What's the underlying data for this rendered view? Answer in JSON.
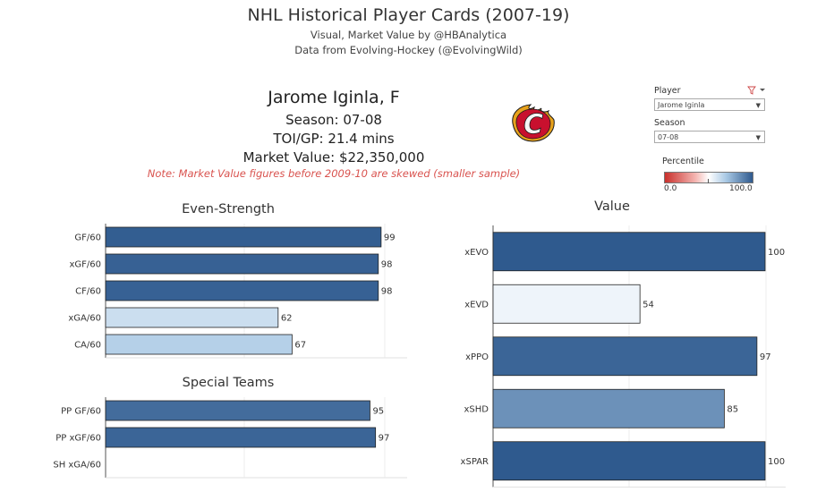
{
  "header": {
    "title": "NHL Historical Player Cards (2007-19)",
    "subtitle_1": "Visual, Market Value by @HBAnalytica",
    "subtitle_2": "Data from Evolving-Hockey (@EvolvingWild)"
  },
  "player": {
    "name": "Jarome Iginla, F",
    "season_line": "Season:  07-08",
    "toi_line": "TOI/GP: 21.4 mins",
    "market_value_line": "Market Value: $22,350,000",
    "note": "Note: Market Value figures before 2009-10 are skewed (smaller sample)",
    "logo_icon": "calgary-flames-logo-icon",
    "logo_letter": "C"
  },
  "filters": {
    "player_label": "Player",
    "player_value": "Jarome Iginla",
    "season_label": "Season",
    "season_value": "07-08",
    "filter_icon": "filter-clear-icon"
  },
  "legend": {
    "title": "Percentile",
    "min_label": "0.0",
    "max_label": "100.0",
    "low_color": "#c9302c",
    "high_color": "#2f5a8e"
  },
  "chart_data": [
    {
      "type": "bar",
      "orientation": "horizontal",
      "title": "Even-Strength",
      "categories": [
        "GF/60",
        "xGF/60",
        "CF/60",
        "xGA/60",
        "CA/60"
      ],
      "values": [
        99,
        98,
        98,
        62,
        67
      ],
      "xlim": [
        0,
        100
      ]
    },
    {
      "type": "bar",
      "orientation": "horizontal",
      "title": "Special Teams",
      "categories": [
        "PP GF/60",
        "PP xGF/60",
        "SH xGA/60"
      ],
      "values": [
        95,
        97,
        0
      ],
      "xlim": [
        0,
        100
      ]
    },
    {
      "type": "bar",
      "orientation": "horizontal",
      "title": "Value",
      "categories": [
        "xEVO",
        "xEVD",
        "xPPO",
        "xSHD",
        "xSPAR"
      ],
      "values": [
        100,
        54,
        97,
        85,
        100
      ],
      "xlim": [
        0,
        100
      ]
    }
  ]
}
